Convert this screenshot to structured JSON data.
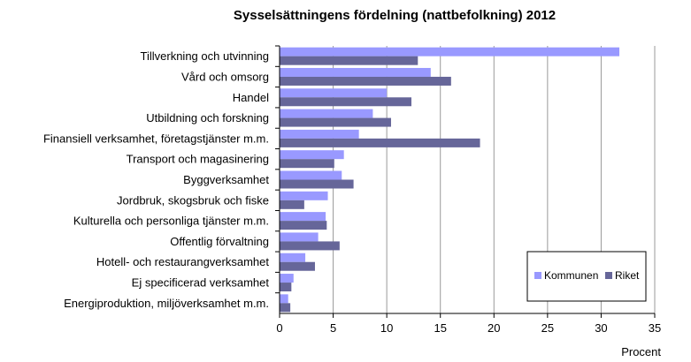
{
  "chart_data": {
    "type": "bar",
    "orientation": "horizontal",
    "title": "Sysselsättningens fördelning (nattbefolkning) 2012",
    "xlabel": "Procent",
    "ylabel": "",
    "xlim": [
      0,
      35
    ],
    "x_ticks": [
      0,
      5,
      10,
      15,
      20,
      25,
      30,
      35
    ],
    "grid": "vertical",
    "legend_position": "bottom-right",
    "categories": [
      "Tillverkning och utvinning",
      "Vård och omsorg",
      "Handel",
      "Utbildning och forskning",
      "Finansiell verksamhet, företagstjänster m.m.",
      "Transport och magasinering",
      "Byggverksamhet",
      "Jordbruk, skogsbruk och fiske",
      "Kulturella och personliga tjänster m.m.",
      "Offentlig förvaltning",
      "Hotell- och restaurangverksamhet",
      "Ej specificerad verksamhet",
      "Energiproduktion, miljöverksamhet m.m."
    ],
    "series": [
      {
        "name": "Kommunen",
        "color": "#9999ff",
        "values": [
          31.7,
          14.1,
          10.0,
          8.7,
          7.4,
          6.0,
          5.8,
          4.5,
          4.3,
          3.6,
          2.4,
          1.3,
          0.8
        ]
      },
      {
        "name": "Riket",
        "color": "#666699",
        "values": [
          12.9,
          16.0,
          12.3,
          10.4,
          18.7,
          5.1,
          6.9,
          2.3,
          4.4,
          5.6,
          3.3,
          1.1,
          1.0
        ]
      }
    ]
  }
}
